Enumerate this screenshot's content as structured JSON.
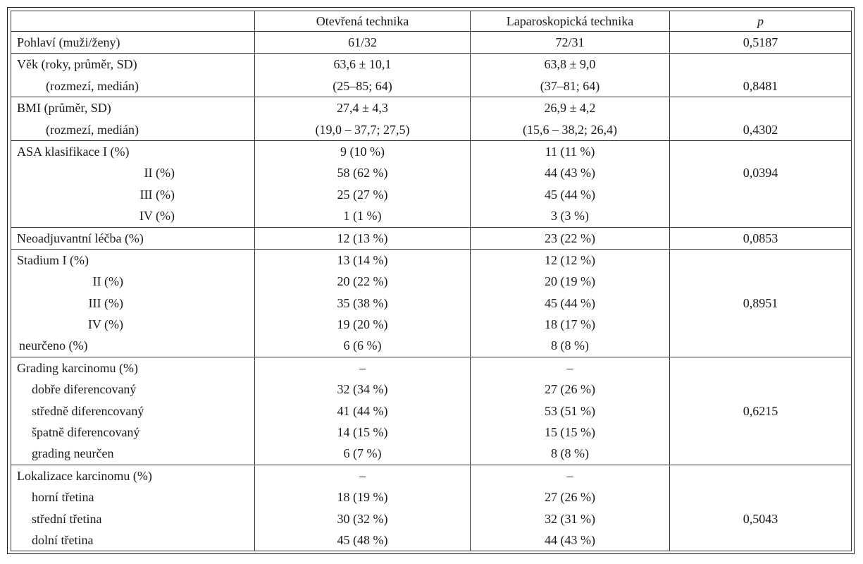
{
  "header": [
    "",
    "Otevřená technika",
    "Laparoskopická technika",
    "p"
  ],
  "rows": [
    {
      "labels": [
        "Pohlaví (muži/ženy)"
      ],
      "open": [
        "61/32"
      ],
      "lap": [
        "72/31"
      ],
      "p": "0,5187"
    },
    {
      "labels": [
        "Věk (roky, průměr, SD)",
        "(rozmezí, medián)"
      ],
      "open": [
        "63,6 ± 10,1",
        "(25–85; 64)"
      ],
      "lap": [
        "63,8 ± 9,0",
        "(37–81; 64)"
      ],
      "p": "0,8481"
    },
    {
      "labels": [
        "BMI (průměr, SD)",
        "(rozmezí, medián)"
      ],
      "open": [
        "27,4 ± 4,3",
        "(19,0 – 37,7; 27,5)"
      ],
      "lap": [
        "26,9 ± 4,2",
        "(15,6 – 38,2; 26,4)"
      ],
      "p": "0,4302"
    },
    {
      "labels": [
        "ASA klasifikace I (%)",
        "II (%)",
        "III (%)",
        "IV (%)"
      ],
      "open": [
        "9 (10 %)",
        "58 (62 %)",
        "25 (27 %)",
        "1 (1 %)"
      ],
      "lap": [
        "11 (11 %)",
        "44 (43 %)",
        "45 (44 %)",
        "3 (3 %)"
      ],
      "p": "0,0394"
    },
    {
      "labels": [
        "Neoadjuvantní léčba (%)"
      ],
      "open": [
        "12 (13 %)"
      ],
      "lap": [
        "23 (22 %)"
      ],
      "p": "0,0853"
    },
    {
      "labels": [
        "Stadium I (%)",
        "II (%)",
        "III (%)",
        "IV (%)",
        "neurčeno (%)"
      ],
      "open": [
        "13 (14 %)",
        "20 (22 %)",
        "35 (38 %)",
        "19 (20 %)",
        "6 (6 %)"
      ],
      "lap": [
        "12 (12 %)",
        "20 (19 %)",
        "45 (44 %)",
        "18 (17 %)",
        "8 (8 %)"
      ],
      "p": "0,8951"
    },
    {
      "labels": [
        "Grading karcinomu (%)",
        "dobře diferencovaný",
        "středně diferencovaný",
        "špatně diferencovaný",
        "grading neurčen"
      ],
      "open": [
        "–",
        "32 (34 %)",
        "41 (44 %)",
        "14 (15 %)",
        "6 (7 %)"
      ],
      "lap": [
        "–",
        "27 (26 %)",
        "53 (51 %)",
        "15 (15 %)",
        "8 (8 %)"
      ],
      "p": "0,6215"
    },
    {
      "labels": [
        "Lokalizace karcinomu (%)",
        "horní třetina",
        "střední třetina",
        "dolní třetina"
      ],
      "open": [
        "–",
        "18 (19 %)",
        "30 (32 %)",
        "45 (48 %)"
      ],
      "lap": [
        "–",
        "27 (26 %)",
        "32 (31 %)",
        "44 (43 %)"
      ],
      "p": "0,5043"
    }
  ]
}
